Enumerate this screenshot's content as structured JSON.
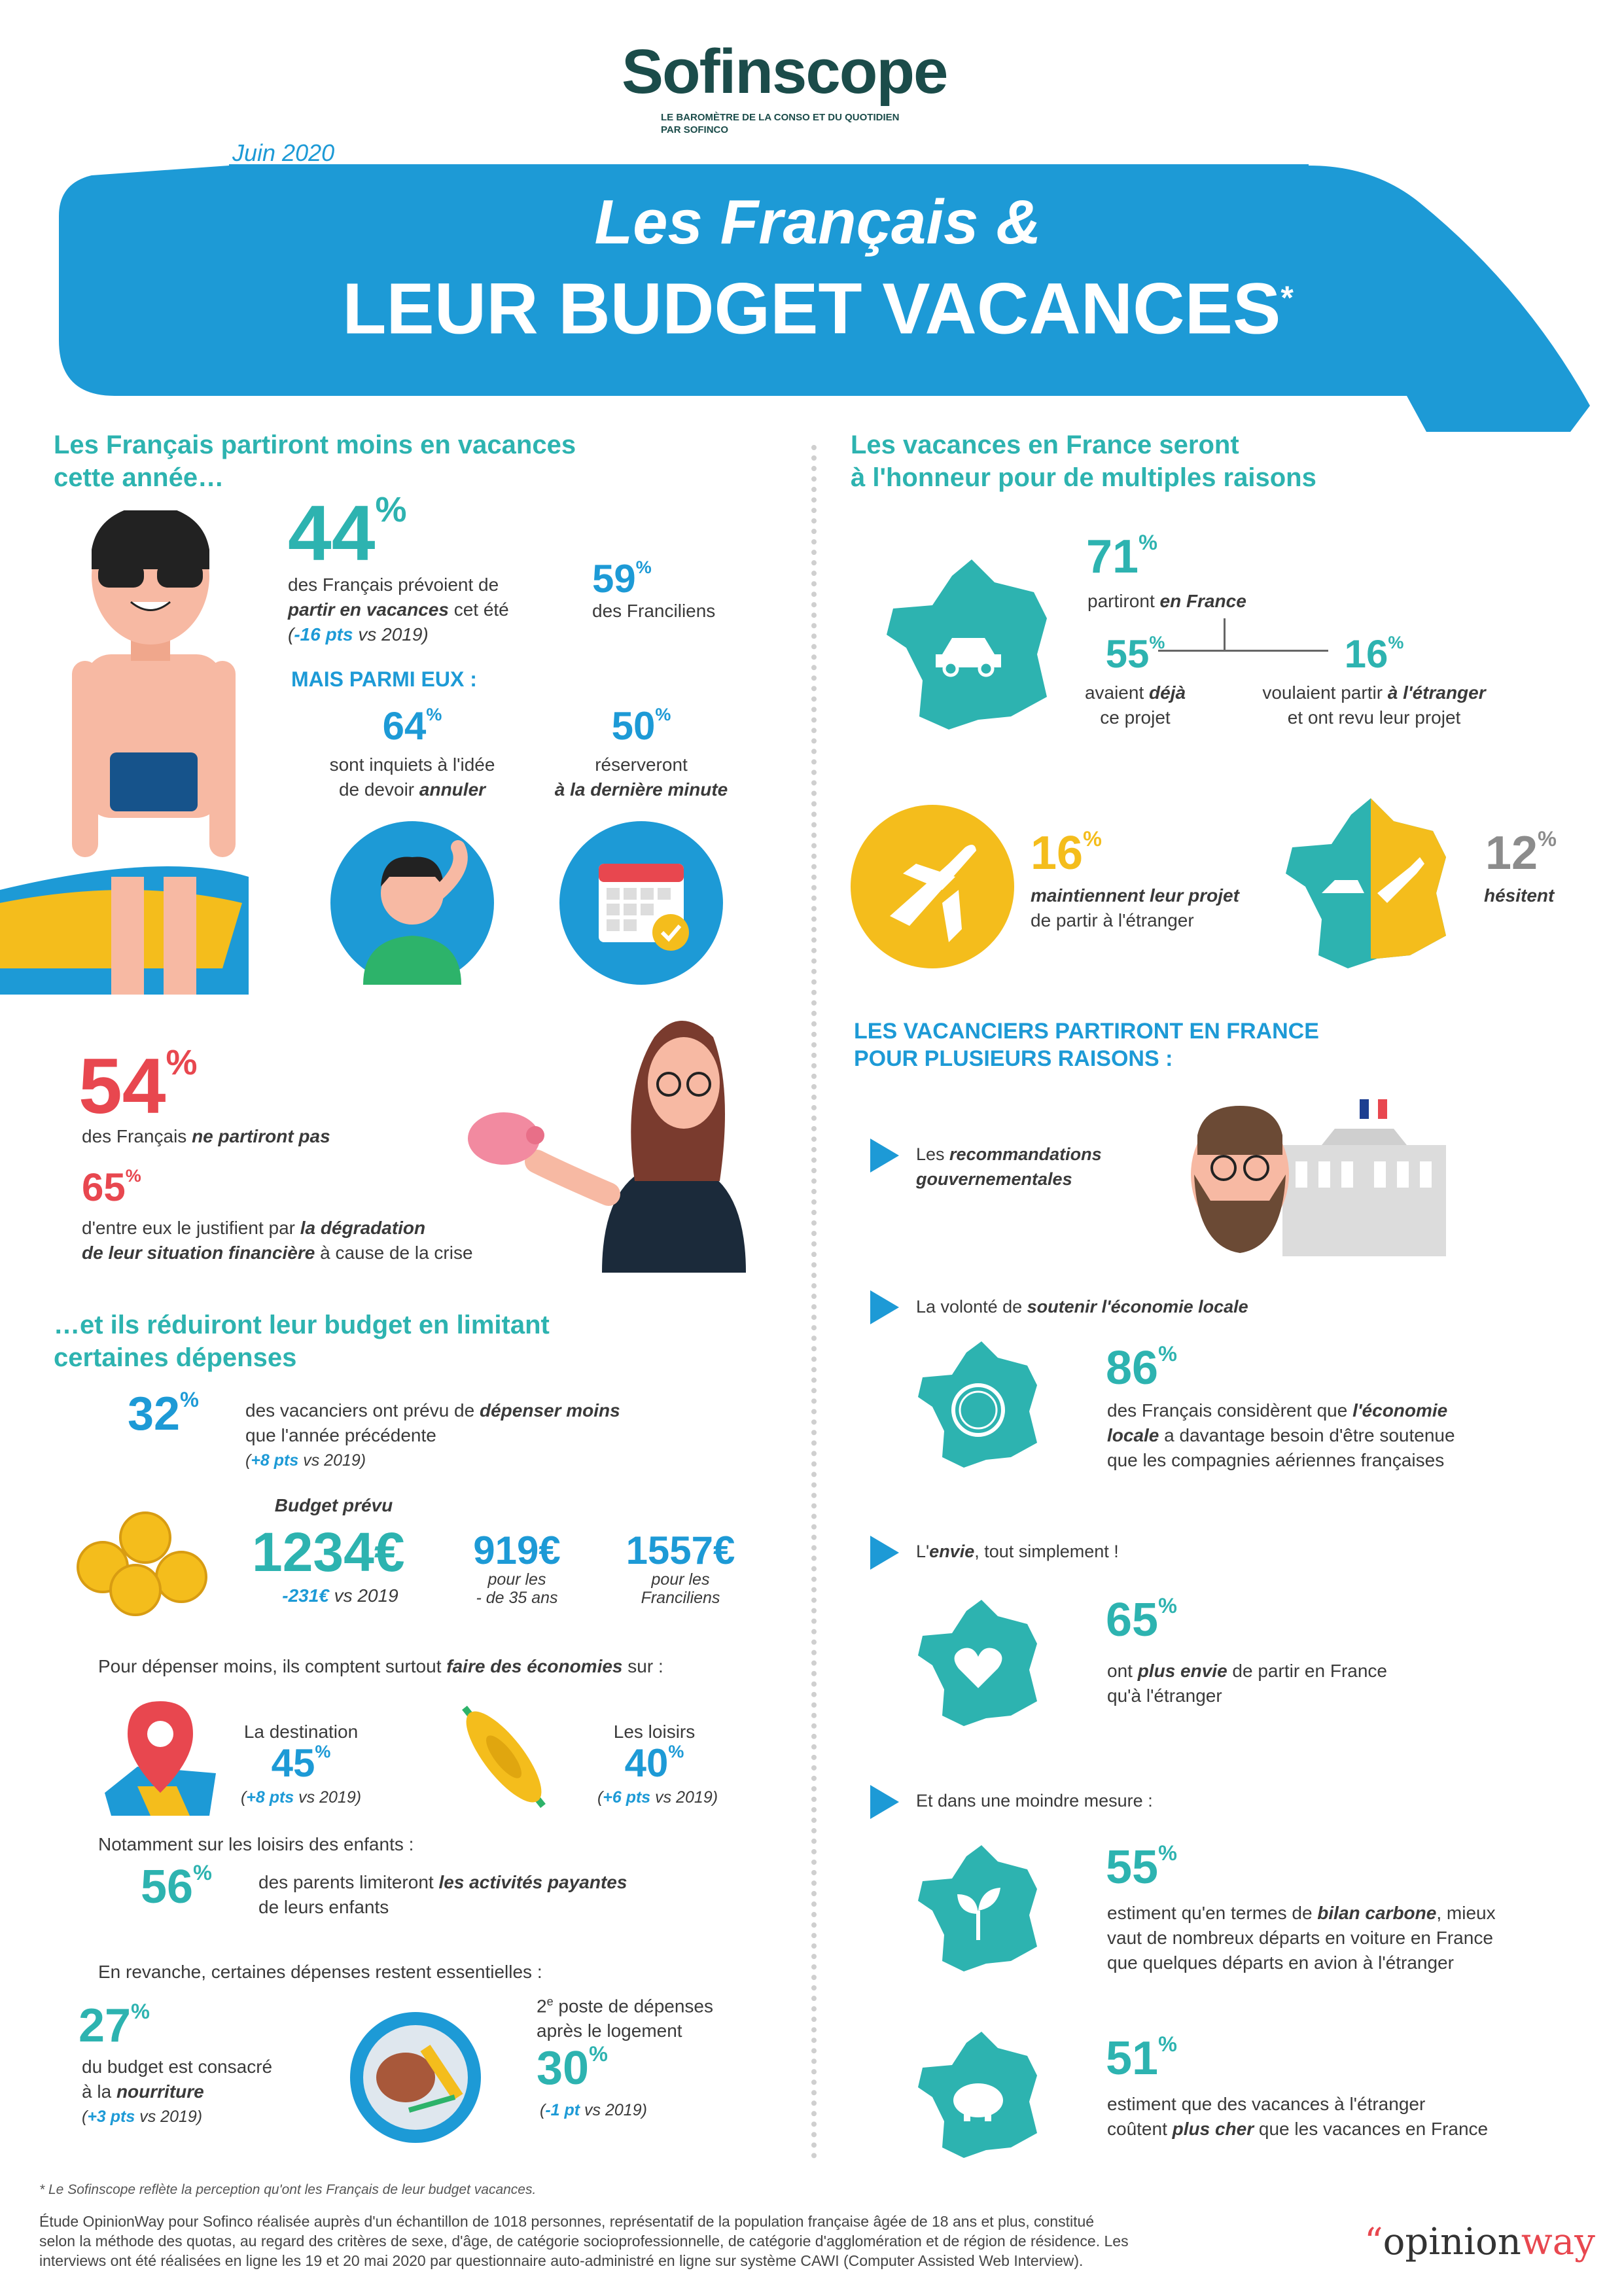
{
  "header": {
    "logo": "Sofinscope",
    "tagline1": "LE BAROMÈTRE DE LA CONSO ET DU QUOTIDIEN",
    "tagline2": "PAR SOFINCO",
    "date": "Juin 2020",
    "title1": "Les Français &",
    "title2": "LEUR BUDGET VACANCES",
    "title_star": "*"
  },
  "left": {
    "heading1": "Les Français partiront moins en vacances",
    "heading1b": "cette année…",
    "s44": {
      "v": "44",
      "u": "%",
      "t1": "des Français prévoient de",
      "t2a": "partir en vacances",
      "t2b": " cet été",
      "t3a": "(",
      "t3b": "-16 pts",
      "t3c": " vs 2019)"
    },
    "s59": {
      "v": "59",
      "u": "%",
      "t": "des Franciliens"
    },
    "mais": "MAIS PARMI EUX :",
    "s64": {
      "v": "64",
      "u": "%",
      "t1": "sont inquiets à l'idée",
      "t2a": "de devoir ",
      "t2b": "annuler"
    },
    "s50": {
      "v": "50",
      "u": "%",
      "t1": "réserveront",
      "t2": "à la dernière minute"
    },
    "s54": {
      "v": "54",
      "u": "%",
      "ta": "des Français ",
      "tb": "ne partiront pas"
    },
    "s65": {
      "v": "65",
      "u": "%",
      "t1a": "d'entre eux le justifient par ",
      "t1b": "la dégradation",
      "t2a": "de leur situation financière",
      "t2b": " à cause de la crise"
    },
    "heading2": "…et ils réduiront leur budget en limitant",
    "heading2b": "certaines dépenses",
    "s32": {
      "v": "32",
      "u": "%",
      "t1a": "des vacanciers ont prévu de ",
      "t1b": "dépenser moins",
      "t2": "que l'année précédente",
      "t3a": "(",
      "t3b": "+8 pts",
      "t3c": " vs 2019)"
    },
    "budget": {
      "label": "Budget prévu",
      "v": "1234€",
      "sub_a": "-231€",
      "sub_b": " vs 2019",
      "v2": "919€",
      "v2l1": "pour les",
      "v2l2": "- de 35 ans",
      "v3": "1557€",
      "v3l1": "pour les",
      "v3l2": "Franciliens"
    },
    "eco": {
      "ta": "Pour dépenser moins, ils comptent surtout ",
      "tb": "faire des économies",
      "tc": " sur :"
    },
    "dest": {
      "label": "La destination",
      "v": "45",
      "u": "%",
      "sa": "(",
      "sb": "+8 pts",
      "sc": " vs 2019)"
    },
    "loisirs": {
      "label": "Les loisirs",
      "v": "40",
      "u": "%",
      "sa": "(",
      "sb": "+6 pts",
      "sc": " vs 2019)"
    },
    "enfants": "Notamment sur les loisirs des enfants :",
    "s56": {
      "v": "56",
      "u": "%",
      "t1a": "des parents limiteront ",
      "t1b": "les activités payantes",
      "t2": "de leurs enfants"
    },
    "revanche": "En revanche, certaines dépenses restent essentielles :",
    "s27": {
      "v": "27",
      "u": "%",
      "t1": "du budget est consacré",
      "t2a": "à la ",
      "t2b": "nourriture",
      "t3a": "(",
      "t3b": "+3 pts",
      "t3c": " vs 2019)"
    },
    "poste": {
      "t1a": "2",
      "t1sup": "e",
      "t1b": " poste de dépenses",
      "t2": "après le logement",
      "v": "30",
      "u": "%",
      "sa": "(",
      "sb": "-1 pt",
      "sc": " vs 2019)"
    }
  },
  "right": {
    "heading1": "Les vacances en France seront",
    "heading1b": "à l'honneur pour de multiples raisons",
    "s71": {
      "v": "71",
      "u": "%",
      "ta": "partiront ",
      "tb": "en France"
    },
    "s55a": {
      "v": "55",
      "u": "%",
      "t1a": "avaient ",
      "t1b": "déjà",
      "t2": "ce projet"
    },
    "s16a": {
      "v": "16",
      "u": "%",
      "t1a": "voulaient partir ",
      "t1b": "à l'étranger",
      "t2": "et ont revu leur projet"
    },
    "s16b": {
      "v": "16",
      "u": "%",
      "t1": "maintiennent leur projet",
      "t2": "de partir à l'étranger"
    },
    "s12": {
      "v": "12",
      "u": "%",
      "t": "hésitent"
    },
    "heading2": "LES VACANCIERS PARTIRONT EN FRANCE",
    "heading2b": "POUR PLUSIEURS RAISONS :",
    "r1": {
      "a": "Les ",
      "b": "recommandations",
      "c": "gouvernementales"
    },
    "r2": {
      "a": "La volonté de ",
      "b": "soutenir l'économie locale"
    },
    "s86": {
      "v": "86",
      "u": "%",
      "t1a": "des Français considèrent que ",
      "t1b": "l'économie",
      "t2a": "locale",
      "t2b": " a davantage besoin d'être soutenue",
      "t3": "que les compagnies aériennes françaises"
    },
    "r3": {
      "a": "L'",
      "b": "envie",
      "c": ", tout simplement !"
    },
    "s65": {
      "v": "65",
      "u": "%",
      "t1a": "ont ",
      "t1b": "plus envie",
      "t1c": " de partir en France",
      "t2": "qu'à l'étranger"
    },
    "r4": "Et dans une moindre mesure :",
    "s55b": {
      "v": "55",
      "u": "%",
      "t1a": "estiment qu'en termes de ",
      "t1b": "bilan carbone",
      "t1c": ", mieux",
      "t2": "vaut de nombreux départs en voiture en France",
      "t3": "que quelques départs en avion à l'étranger"
    },
    "s51": {
      "v": "51",
      "u": "%",
      "t1": "estiment que des vacances à l'étranger",
      "t2a": "coûtent ",
      "t2b": "plus cher",
      "t2c": " que les vacances en France"
    }
  },
  "footer": {
    "note": "* Le Sofinscope reflète la perception qu'ont les Français de leur budget vacances.",
    "l1": "Étude OpinionWay pour Sofinco réalisée auprès d'un échantillon de 1018 personnes, représentatif de la population française âgée de 18 ans et plus, constitué",
    "l2": "selon la méthode des quotas, au regard des critères de sexe, d'âge, de catégorie socioprofessionnelle, de catégorie d'agglomération et de région de résidence. Les",
    "l3": "interviews ont été réalisées en ligne les 19 et 20 mai 2020 par questionnaire auto-administré en ligne sur système CAWI (Computer Assisted Web Interview).",
    "brand_q": "“",
    "brand_a": "opinion",
    "brand_b": "way"
  },
  "colors": {
    "teal": "#2db3b0",
    "blue": "#1d9ad6",
    "red": "#e8474f",
    "yellow": "#f4bd1c",
    "dark_green": "#1b4c4a"
  }
}
